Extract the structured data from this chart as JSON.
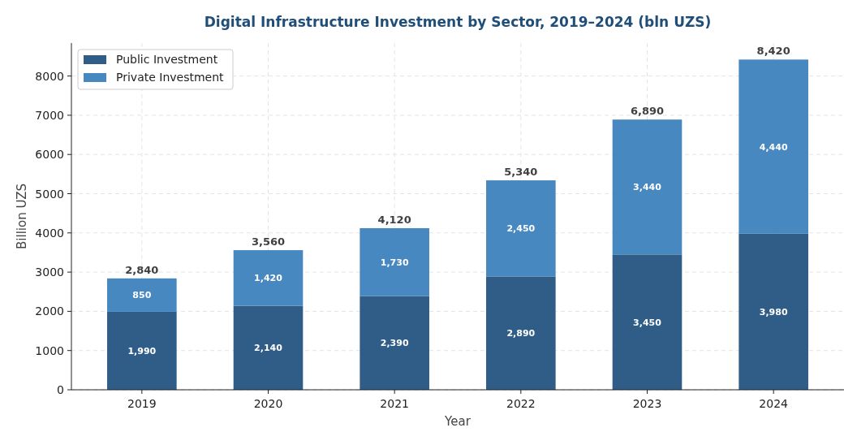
{
  "chart_data": {
    "type": "bar",
    "title": "Digital Infrastructure Investment by Sector, 2019–2024 (bln UZS)",
    "xlabel": "Year",
    "ylabel": "Billion UZS",
    "categories": [
      "2019",
      "2020",
      "2021",
      "2022",
      "2023",
      "2024"
    ],
    "stacked": true,
    "series": [
      {
        "name": "Public Investment",
        "color": "#2f5d87",
        "values": [
          1990,
          2140,
          2390,
          2890,
          3450,
          3980
        ],
        "value_labels": [
          "1,990",
          "2,140",
          "2,390",
          "2,890",
          "3,450",
          "3,980"
        ]
      },
      {
        "name": "Private Investment",
        "color": "#4788c0",
        "values": [
          850,
          1420,
          1730,
          2450,
          3440,
          4440
        ],
        "value_labels": [
          "850",
          "1,420",
          "1,730",
          "2,450",
          "3,440",
          "4,440"
        ]
      }
    ],
    "totals": [
      "2,840",
      "3,560",
      "4,120",
      "5,340",
      "6,890",
      "8,420"
    ],
    "ylim": [
      0,
      8841
    ],
    "yticks": [
      0,
      1000,
      2000,
      3000,
      4000,
      5000,
      6000,
      7000,
      8000
    ],
    "grid": true,
    "legend": "top left"
  }
}
